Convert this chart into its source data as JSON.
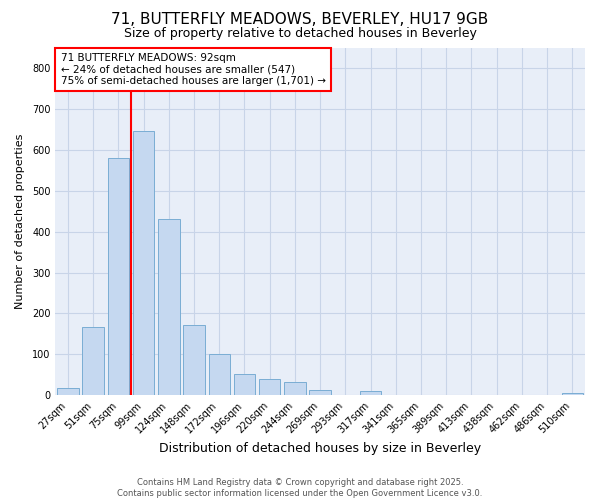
{
  "title1": "71, BUTTERFLY MEADOWS, BEVERLEY, HU17 9GB",
  "title2": "Size of property relative to detached houses in Beverley",
  "xlabel": "Distribution of detached houses by size in Beverley",
  "ylabel": "Number of detached properties",
  "categories": [
    "27sqm",
    "51sqm",
    "75sqm",
    "99sqm",
    "124sqm",
    "148sqm",
    "172sqm",
    "196sqm",
    "220sqm",
    "244sqm",
    "269sqm",
    "293sqm",
    "317sqm",
    "341sqm",
    "365sqm",
    "389sqm",
    "413sqm",
    "438sqm",
    "462sqm",
    "486sqm",
    "510sqm"
  ],
  "values": [
    18,
    168,
    580,
    645,
    430,
    172,
    102,
    52,
    40,
    32,
    14,
    0,
    10,
    0,
    0,
    0,
    0,
    0,
    0,
    0,
    5
  ],
  "bar_color": "#c5d8f0",
  "bar_edge_color": "#7aadd4",
  "vline_color": "red",
  "vline_x_index": 3,
  "ylim": [
    0,
    850
  ],
  "yticks": [
    0,
    100,
    200,
    300,
    400,
    500,
    600,
    700,
    800
  ],
  "annotation_title": "71 BUTTERFLY MEADOWS: 92sqm",
  "annotation_line1": "← 24% of detached houses are smaller (547)",
  "annotation_line2": "75% of semi-detached houses are larger (1,701) →",
  "annotation_box_facecolor": "white",
  "annotation_box_edgecolor": "red",
  "footer1": "Contains HM Land Registry data © Crown copyright and database right 2025.",
  "footer2": "Contains public sector information licensed under the Open Government Licence v3.0.",
  "fig_facecolor": "#ffffff",
  "plot_facecolor": "#e8eef8",
  "grid_color": "#c8d4e8",
  "title1_fontsize": 11,
  "title2_fontsize": 9,
  "xlabel_fontsize": 9,
  "ylabel_fontsize": 8,
  "tick_fontsize": 7,
  "annot_fontsize": 7.5,
  "footer_fontsize": 6
}
